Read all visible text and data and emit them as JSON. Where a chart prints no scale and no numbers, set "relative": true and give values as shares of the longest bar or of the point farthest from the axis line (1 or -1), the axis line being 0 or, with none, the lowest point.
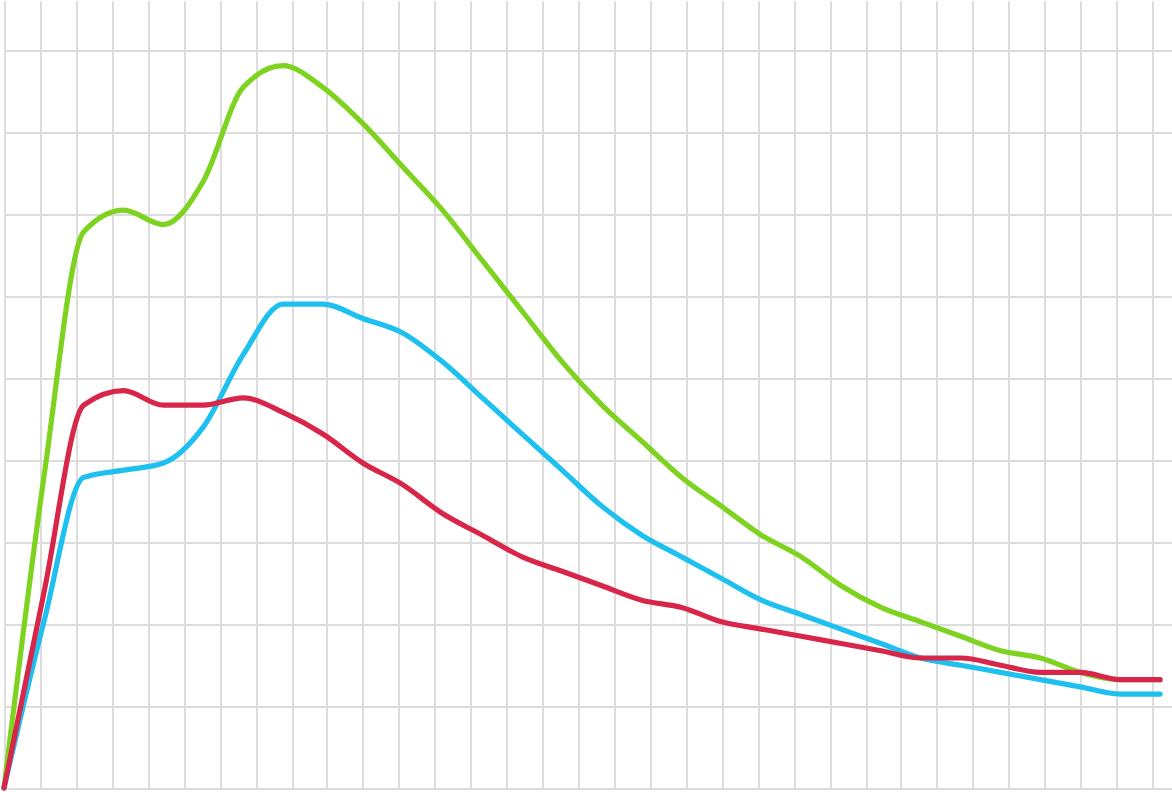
{
  "chart_data": {
    "type": "line",
    "relative": true,
    "grid": true,
    "marker": "none",
    "line_style": "solid",
    "legend": false,
    "tick_labels": false,
    "categories": [
      null,
      null,
      null,
      null,
      null,
      null,
      null,
      null,
      null,
      null,
      null,
      null,
      null,
      null,
      null,
      null,
      null,
      null,
      null,
      null,
      null,
      null,
      null,
      null,
      null,
      null,
      null,
      null,
      null,
      null
    ],
    "series": [
      {
        "color": "#7ed321",
        "values": [
          0,
          0.43,
          0.77,
          0.8,
          0.78,
          0.84,
          0.97,
          1.0,
          0.97,
          0.92,
          0.86,
          0.8,
          0.73,
          0.66,
          0.59,
          0.53,
          0.48,
          0.43,
          0.39,
          0.35,
          0.32,
          0.28,
          0.25,
          0.23,
          0.21,
          0.19,
          0.18,
          0.16,
          0.15,
          0.15
        ]
      },
      {
        "color": "#1ec0f0",
        "values": [
          0,
          0.23,
          0.43,
          0.44,
          0.45,
          0.5,
          0.6,
          0.67,
          0.67,
          0.65,
          0.63,
          0.59,
          0.54,
          0.49,
          0.44,
          0.39,
          0.35,
          0.32,
          0.29,
          0.26,
          0.24,
          0.22,
          0.2,
          0.18,
          0.17,
          0.16,
          0.15,
          0.14,
          0.13,
          0.13
        ]
      },
      {
        "color": "#d8264a",
        "values": [
          0,
          0.27,
          0.53,
          0.55,
          0.53,
          0.53,
          0.54,
          0.52,
          0.49,
          0.45,
          0.42,
          0.38,
          0.35,
          0.32,
          0.3,
          0.28,
          0.26,
          0.25,
          0.23,
          0.22,
          0.21,
          0.2,
          0.19,
          0.18,
          0.18,
          0.17,
          0.16,
          0.16,
          0.15,
          0.15
        ]
      }
    ]
  }
}
